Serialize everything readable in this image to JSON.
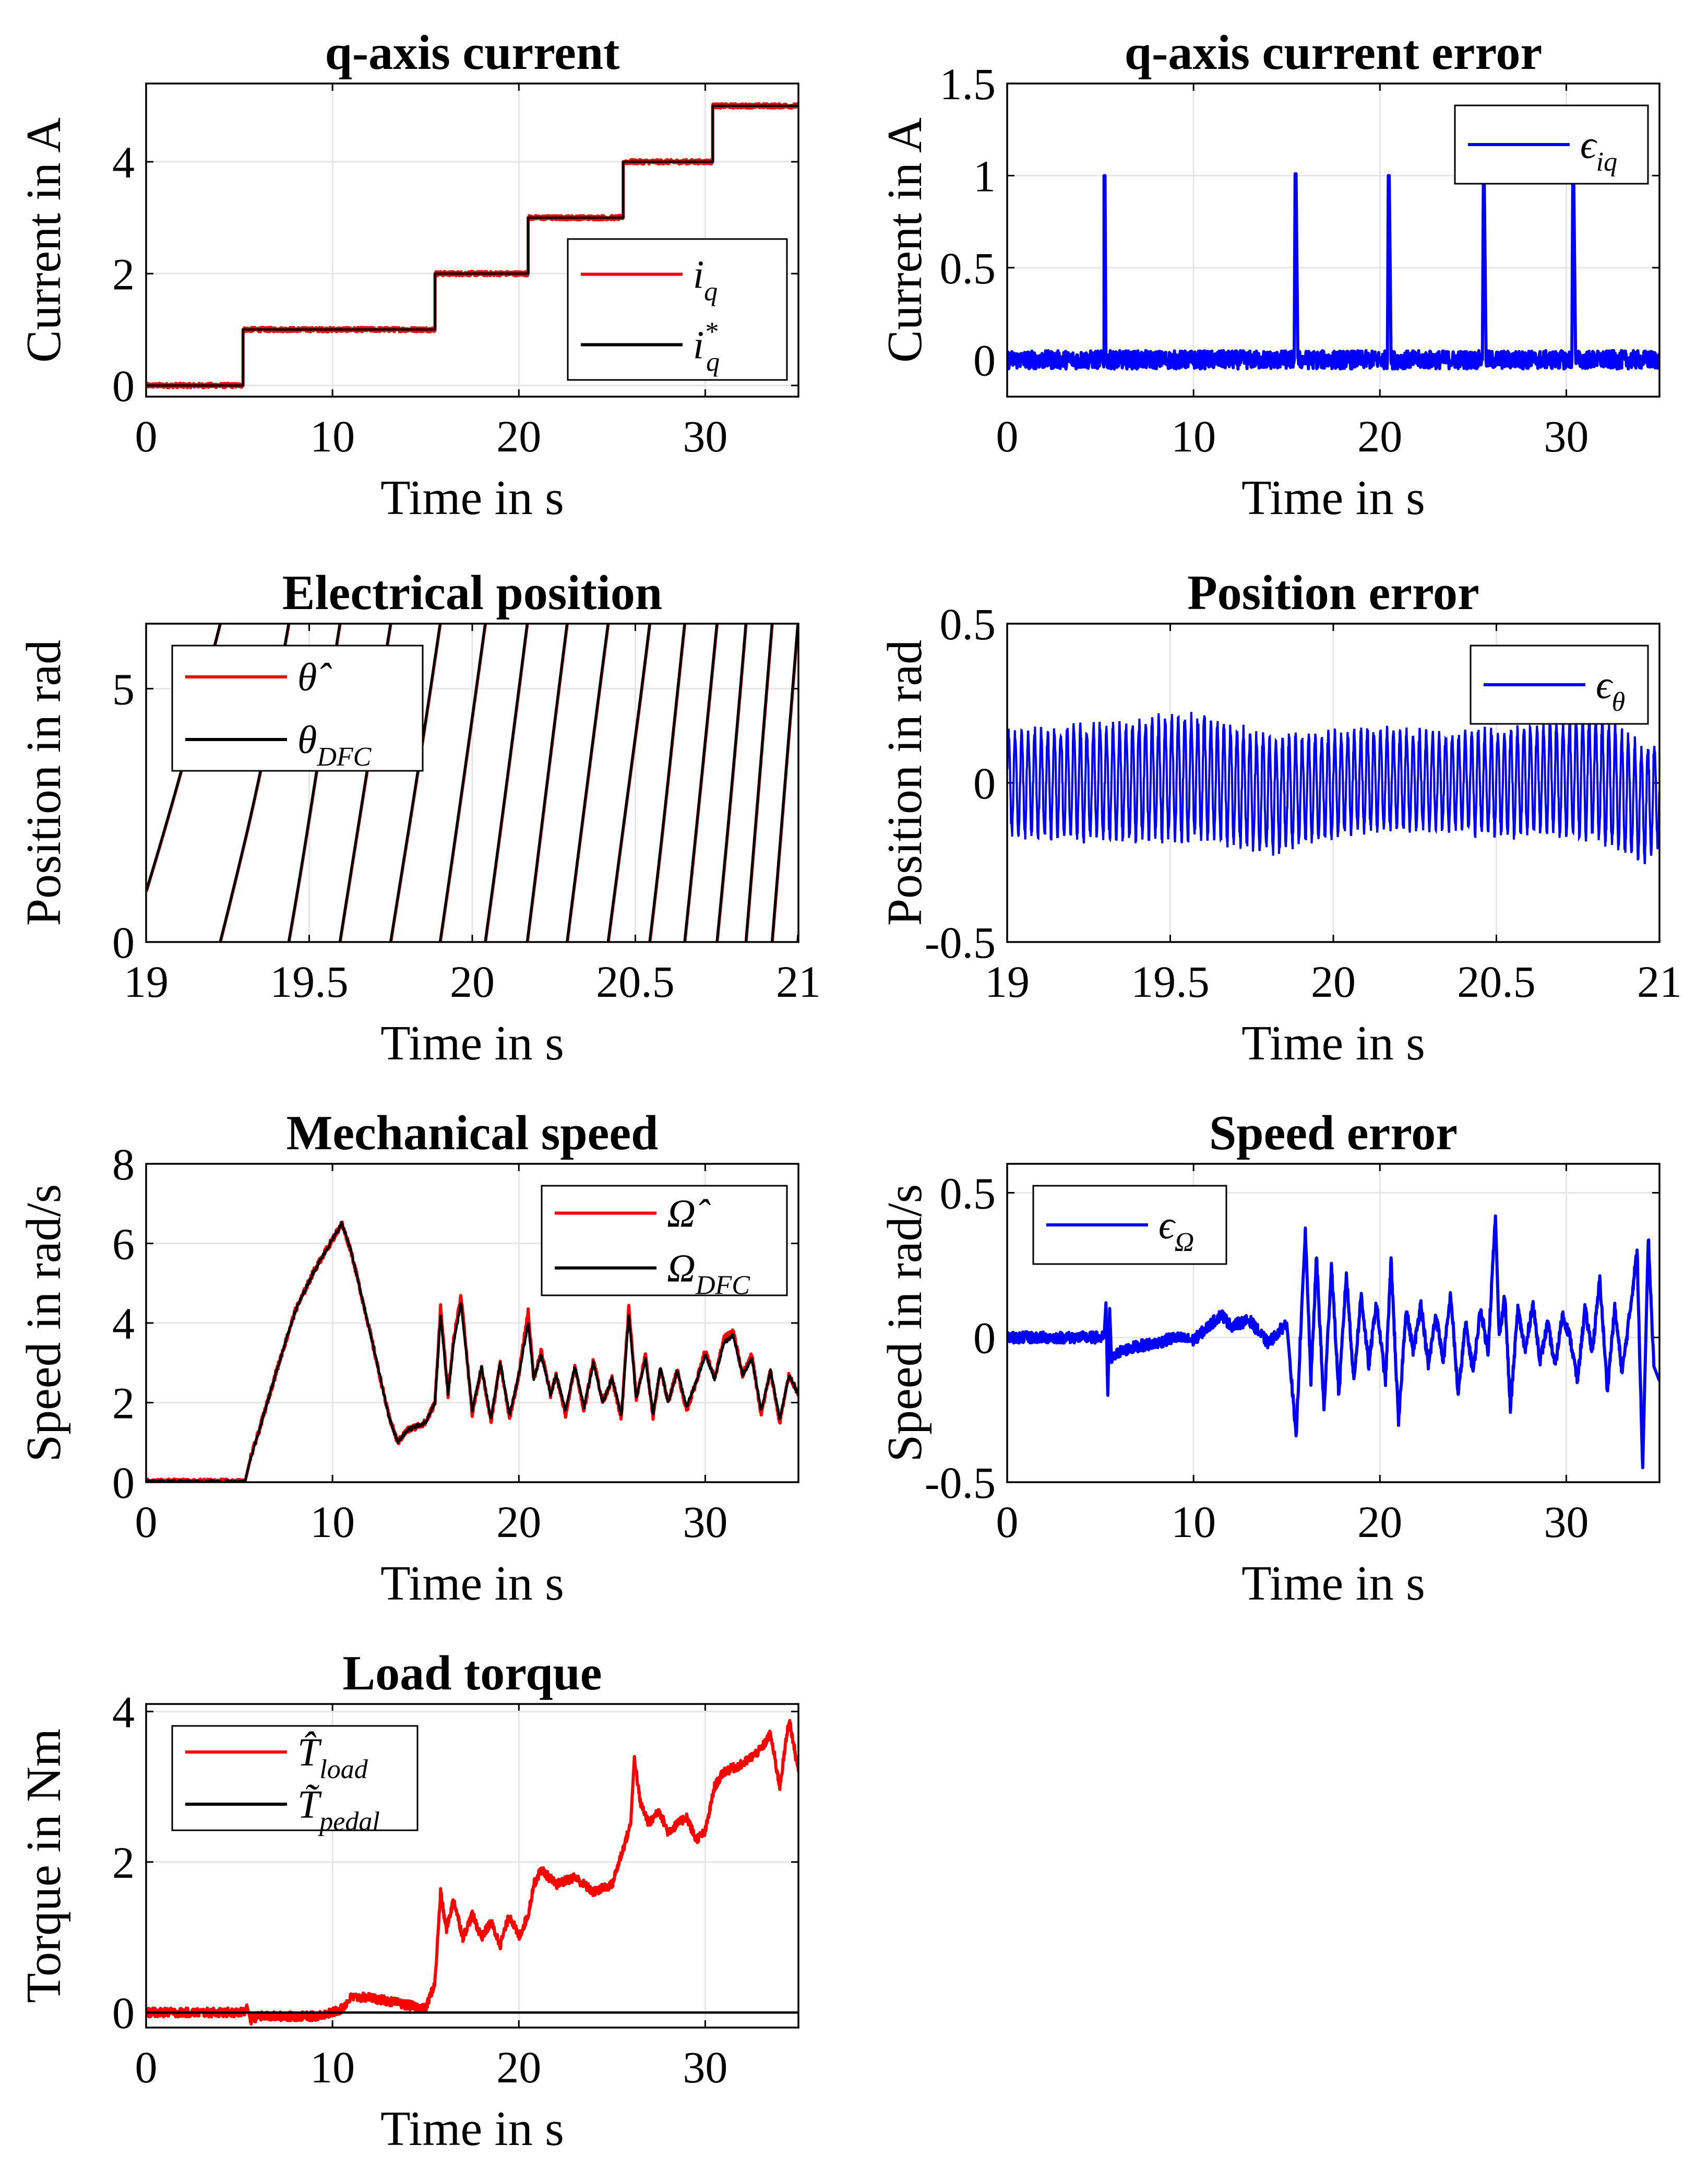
{
  "figure": {
    "colors": {
      "red": "#ff0000",
      "black": "#000000",
      "blue": "#0000ff",
      "grid": "#e6e6e6"
    }
  },
  "chart_data": [
    {
      "type": "line",
      "title": "q-axis current",
      "xlabel": "Time in s",
      "ylabel": "Current in A",
      "xlim": [
        0,
        35
      ],
      "ylim": [
        -0.2,
        5.4
      ],
      "xticks": [
        0,
        10,
        20,
        30
      ],
      "xtick_labels": [
        "0",
        "10",
        "20",
        "30"
      ],
      "yticks": [
        0,
        2,
        4
      ],
      "ytick_labels": [
        "0",
        "2",
        "4"
      ],
      "grid": true,
      "legend": "bottom-right",
      "series": [
        {
          "name": "i_q",
          "legend_main": "i",
          "legend_sub": "q",
          "legend_sup": "",
          "color": "#ff0000",
          "noise": 0.04,
          "x": [
            0,
            5.2,
            5.2,
            15.5,
            15.5,
            20.5,
            20.5,
            25.6,
            25.6,
            30.4,
            30.4,
            35
          ],
          "y": [
            0,
            0,
            1,
            1,
            2,
            2,
            3,
            3,
            4,
            4,
            5,
            5
          ]
        },
        {
          "name": "i_q*",
          "legend_main": "i",
          "legend_sub": "q",
          "legend_sup": "*",
          "color": "#000000",
          "noise": 0,
          "x": [
            0,
            5.2,
            5.2,
            15.5,
            15.5,
            20.5,
            20.5,
            25.6,
            25.6,
            30.4,
            30.4,
            35
          ],
          "y": [
            0,
            0,
            1,
            1,
            2,
            2,
            3,
            3,
            4,
            4,
            5,
            5
          ]
        }
      ]
    },
    {
      "type": "line",
      "title": "q-axis current error",
      "xlabel": "Time in s",
      "ylabel": "Current in A",
      "xlim": [
        0,
        35
      ],
      "ylim": [
        -0.2,
        1.5
      ],
      "xticks": [
        0,
        10,
        20,
        30
      ],
      "xtick_labels": [
        "0",
        "10",
        "20",
        "30"
      ],
      "yticks": [
        0,
        0.5,
        1,
        1.5
      ],
      "ytick_labels": [
        "0",
        "0.5",
        "1",
        "1.5"
      ],
      "grid": true,
      "legend": "top-right",
      "series": [
        {
          "name": "ε_iq",
          "legend_main": "ϵ",
          "legend_sub": "iq",
          "legend_sup": "",
          "color": "#0000ff",
          "noise": 0.05,
          "x": [
            0,
            5.2,
            5.2,
            5.25,
            5.3,
            15.4,
            15.45,
            15.5,
            15.6,
            20.4,
            20.45,
            20.5,
            20.6,
            25.5,
            25.55,
            25.6,
            25.7,
            30.3,
            30.35,
            30.4,
            30.5,
            35
          ],
          "y": [
            0,
            0,
            1.0,
            1.0,
            0,
            0,
            1.01,
            1.01,
            0,
            0,
            1.0,
            1.0,
            0,
            0,
            0.96,
            0.96,
            0,
            0,
            0.99,
            0.99,
            0,
            0
          ]
        }
      ]
    },
    {
      "type": "line",
      "title": "Electrical position",
      "xlabel": "Time in s",
      "ylabel": "Position in rad",
      "xlim": [
        19,
        21
      ],
      "ylim": [
        0,
        6.283
      ],
      "xticks": [
        19,
        19.5,
        20,
        20.5,
        21
      ],
      "xtick_labels": [
        "19",
        "19.5",
        "20",
        "20.5",
        "21"
      ],
      "yticks": [
        0,
        5
      ],
      "ytick_labels": [
        "0",
        "5"
      ],
      "grid": true,
      "legend": "top-left",
      "sawtooth": {
        "start_phase": 1.0,
        "knots": [
          19.0,
          19.3,
          19.5,
          19.8,
          19.9,
          20.05,
          20.2,
          20.35,
          20.5,
          20.6,
          20.75,
          20.85,
          21.0
        ],
        "omega": [
          21,
          27,
          41,
          40,
          44,
          47,
          52,
          50,
          48,
          60,
          65,
          78,
          80
        ]
      },
      "series": [
        {
          "name": "θ̂",
          "legend_main": "θ̂",
          "legend_sub": "",
          "legend_sup": "",
          "color": "#ff0000",
          "noise": 0
        },
        {
          "name": "θ_DFC",
          "legend_main": "θ",
          "legend_sub": "DFC",
          "legend_sup": "",
          "color": "#000000",
          "noise": 0
        }
      ]
    },
    {
      "type": "line",
      "title": "Position error",
      "xlabel": "Time in s",
      "ylabel": "Position in rad",
      "xlim": [
        19,
        21
      ],
      "ylim": [
        -0.5,
        0.5
      ],
      "xticks": [
        19,
        19.5,
        20,
        20.5,
        21
      ],
      "xtick_labels": [
        "19",
        "19.5",
        "20",
        "20.5",
        "21"
      ],
      "yticks": [
        -0.5,
        0,
        0.5
      ],
      "ytick_labels": [
        "-0.5",
        "0",
        "0.5"
      ],
      "grid": true,
      "legend": "top-right",
      "oscillation": {
        "frequency_hz": 50,
        "amp_t": [
          19.0,
          19.3,
          19.5,
          19.8,
          20.0,
          20.3,
          20.6,
          20.8,
          20.9,
          21.0
        ],
        "amp": [
          0.17,
          0.19,
          0.2,
          0.19,
          0.17,
          0.16,
          0.18,
          0.2,
          0.2,
          0.17
        ],
        "offset_t": [
          19.0,
          19.3,
          19.6,
          19.8,
          20.1,
          20.5,
          20.8,
          20.95,
          21.0
        ],
        "offset": [
          0,
          0,
          0.02,
          -0.04,
          0.01,
          0,
          0.02,
          -0.07,
          -0.03
        ]
      },
      "series": [
        {
          "name": "ε_θ",
          "legend_main": "ϵ",
          "legend_sub": "θ",
          "legend_sup": "",
          "color": "#0000ff",
          "noise": 0
        }
      ]
    },
    {
      "type": "line",
      "title": "Mechanical speed",
      "xlabel": "Time in s",
      "ylabel": "Speed in rad/s",
      "xlim": [
        0,
        35
      ],
      "ylim": [
        0,
        8
      ],
      "xticks": [
        0,
        10,
        20,
        30
      ],
      "xtick_labels": [
        "0",
        "10",
        "20",
        "30"
      ],
      "yticks": [
        0,
        2,
        4,
        6,
        8
      ],
      "ytick_labels": [
        "0",
        "2",
        "4",
        "6",
        "8"
      ],
      "grid": true,
      "legend": "top-right",
      "series": [
        {
          "name": "Ω̂",
          "legend_main": "Ω̂",
          "legend_sub": "",
          "legend_sup": "",
          "color": "#ff0000",
          "noise": 0.08,
          "x": [
            0,
            5.3,
            5.6,
            6,
            7,
            8,
            9,
            10,
            10.5,
            11,
            12,
            13,
            13.5,
            14,
            15,
            15.5,
            15.8,
            16.2,
            16.5,
            16.9,
            17.5,
            18,
            18.5,
            19,
            19.5,
            20,
            20.5,
            20.8,
            21.2,
            21.7,
            22,
            22.5,
            23,
            23.5,
            24,
            24.5,
            25,
            25.5,
            25.9,
            26.3,
            26.8,
            27.2,
            27.6,
            28,
            28.5,
            29,
            29.5,
            30,
            30.5,
            31,
            31.5,
            32,
            32.5,
            33,
            33.5,
            34,
            34.5,
            35
          ],
          "y": [
            0,
            0,
            0.6,
            1.2,
            2.8,
            4.3,
            5.3,
            6.1,
            6.5,
            5.8,
            3.8,
            1.7,
            1.0,
            1.3,
            1.5,
            2.0,
            4.4,
            2.2,
            3.6,
            4.7,
            1.7,
            2.9,
            1.5,
            3.0,
            1.6,
            2.7,
            4.3,
            2.6,
            3.3,
            2.2,
            2.7,
            1.7,
            2.9,
            1.8,
            3.1,
            2.0,
            2.6,
            1.6,
            4.4,
            2.1,
            3.2,
            1.6,
            2.9,
            2.0,
            2.8,
            1.8,
            2.5,
            3.3,
            2.6,
            3.6,
            3.8,
            2.7,
            3.2,
            1.7,
            2.8,
            1.5,
            2.7,
            2.2
          ]
        },
        {
          "name": "Ω_DFC",
          "legend_main": "Ω",
          "legend_sub": "DFC",
          "legend_sup": "",
          "color": "#000000",
          "noise": 0.05,
          "x": [
            0,
            5.3,
            5.6,
            6,
            7,
            8,
            9,
            10,
            10.5,
            11,
            12,
            13,
            13.5,
            14,
            15,
            15.5,
            15.8,
            16.2,
            16.5,
            16.9,
            17.5,
            18,
            18.5,
            19,
            19.5,
            20,
            20.5,
            20.8,
            21.2,
            21.7,
            22,
            22.5,
            23,
            23.5,
            24,
            24.5,
            25,
            25.5,
            25.9,
            26.3,
            26.8,
            27.2,
            27.6,
            28,
            28.5,
            29,
            29.5,
            30,
            30.5,
            31,
            31.5,
            32,
            32.5,
            33,
            33.5,
            34,
            34.5,
            35
          ],
          "y": [
            0,
            0,
            0.6,
            1.2,
            2.8,
            4.3,
            5.3,
            6.1,
            6.5,
            5.8,
            3.8,
            1.7,
            1.0,
            1.3,
            1.5,
            2.0,
            4.2,
            2.2,
            3.5,
            4.5,
            1.8,
            2.9,
            1.6,
            3.0,
            1.7,
            2.7,
            4.0,
            2.6,
            3.2,
            2.2,
            2.7,
            1.8,
            2.9,
            1.9,
            3.0,
            2.0,
            2.6,
            1.7,
            4.2,
            2.1,
            3.1,
            1.7,
            2.9,
            2.0,
            2.8,
            1.9,
            2.5,
            3.2,
            2.6,
            3.5,
            3.7,
            2.7,
            3.1,
            1.8,
            2.8,
            1.6,
            2.7,
            2.2
          ]
        }
      ]
    },
    {
      "type": "line",
      "title": "Speed error",
      "xlabel": "Time in s",
      "ylabel": "Speed in rad/s",
      "xlim": [
        0,
        35
      ],
      "ylim": [
        -0.5,
        0.6
      ],
      "xticks": [
        0,
        10,
        20,
        30
      ],
      "xtick_labels": [
        "0",
        "10",
        "20",
        "30"
      ],
      "yticks": [
        -0.5,
        0,
        0.5
      ],
      "ytick_labels": [
        "-0.5",
        "0",
        "0.5"
      ],
      "grid": true,
      "legend": "top-left",
      "series": [
        {
          "name": "ε_Ω",
          "legend_main": "ϵ",
          "legend_sub": "Ω",
          "legend_sup": "",
          "color": "#0000ff",
          "noise": 0.02,
          "x": [
            0,
            5.2,
            5.3,
            5.4,
            5.5,
            5.6,
            6,
            7,
            8,
            9,
            10,
            11,
            11.5,
            12,
            13,
            14,
            15,
            15.2,
            15.5,
            15.8,
            16,
            16.3,
            16.6,
            17,
            17.4,
            17.8,
            18.2,
            18.6,
            19,
            19.4,
            19.8,
            20.3,
            20.6,
            21,
            21.4,
            21.8,
            22.2,
            22.6,
            23,
            23.4,
            23.8,
            24.2,
            24.6,
            25,
            25.4,
            25.8,
            26.2,
            26.4,
            26.7,
            27,
            27.4,
            27.8,
            28.2,
            28.6,
            29,
            29.4,
            29.8,
            30.2,
            30.6,
            31,
            31.4,
            31.8,
            32.2,
            32.6,
            33,
            33.4,
            33.8,
            34.1,
            34.4,
            34.7,
            35
          ],
          "y": [
            0,
            0,
            0.12,
            -0.2,
            0.1,
            -0.08,
            -0.05,
            -0.03,
            -0.02,
            0,
            -0.01,
            0.05,
            0.08,
            0.04,
            0.06,
            -0.02,
            0.05,
            -0.1,
            -0.35,
            0.1,
            0.36,
            -0.15,
            0.28,
            -0.25,
            0.25,
            -0.2,
            0.22,
            -0.15,
            0.15,
            -0.1,
            0.12,
            -0.15,
            0.27,
            -0.3,
            0.1,
            -0.05,
            0.12,
            -0.1,
            0.08,
            -0.08,
            0.15,
            -0.2,
            0.05,
            -0.12,
            0.1,
            -0.05,
            0.42,
            0.0,
            0.15,
            -0.25,
            0.1,
            -0.05,
            0.12,
            -0.08,
            0.05,
            -0.1,
            0.08,
            0.0,
            -0.15,
            0.1,
            -0.05,
            0.2,
            -0.18,
            0.1,
            -0.12,
            0.08,
            0.3,
            -0.45,
            0.35,
            -0.1,
            -0.15
          ]
        }
      ]
    },
    {
      "type": "line",
      "title": "Load torque",
      "xlabel": "Time in s",
      "ylabel": "Torque in Nm",
      "xlim": [
        0,
        35
      ],
      "ylim": [
        -0.2,
        4.1
      ],
      "xticks": [
        0,
        10,
        20,
        30
      ],
      "xtick_labels": [
        "0",
        "10",
        "20",
        "30"
      ],
      "yticks": [
        0,
        2,
        4
      ],
      "ytick_labels": [
        "0",
        "2",
        "4"
      ],
      "grid": true,
      "legend": "top-left",
      "series": [
        {
          "name": "T̂_load",
          "legend_main": "T̂",
          "legend_sub": "load",
          "legend_sup": "",
          "color": "#ff0000",
          "noise": 0.06,
          "x": [
            0,
            5.3,
            5.4,
            5.6,
            6,
            7,
            8,
            9,
            10,
            10.5,
            11,
            12,
            13,
            14,
            15,
            15.5,
            15.8,
            16.1,
            16.5,
            17,
            17.5,
            18,
            18.5,
            19,
            19.5,
            20,
            20.5,
            20.8,
            21.2,
            22,
            23,
            24,
            25,
            25.5,
            26,
            26.2,
            26.5,
            27,
            27.5,
            28,
            29,
            29.5,
            30,
            30.5,
            31,
            32,
            33,
            33.5,
            34,
            34.5,
            35
          ],
          "y": [
            0,
            0,
            0.1,
            -0.1,
            -0.05,
            -0.05,
            -0.05,
            -0.05,
            0,
            0.05,
            0.2,
            0.2,
            0.15,
            0.1,
            0.05,
            0.4,
            1.6,
            1.1,
            1.5,
            1.0,
            1.3,
            1.0,
            1.2,
            0.9,
            1.3,
            1.0,
            1.3,
            1.7,
            1.9,
            1.7,
            1.8,
            1.6,
            1.7,
            2.1,
            2.5,
            3.4,
            2.8,
            2.5,
            2.7,
            2.4,
            2.6,
            2.3,
            2.4,
            3.0,
            3.2,
            3.3,
            3.5,
            3.7,
            3.0,
            3.9,
            3.2
          ]
        },
        {
          "name": "T̃_pedal",
          "legend_main": "T̃",
          "legend_sub": "pedal",
          "legend_sup": "",
          "color": "#000000",
          "noise": 0,
          "x": [
            0,
            35
          ],
          "y": [
            0,
            0
          ]
        }
      ]
    }
  ]
}
